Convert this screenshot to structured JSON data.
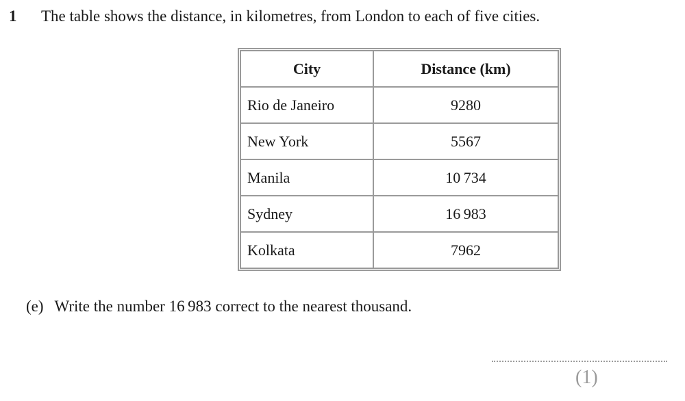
{
  "page": {
    "question_number": "1",
    "intro": "The table shows the distance, in kilometres, from London to each of five cities."
  },
  "table": {
    "headers": [
      "City",
      "Distance (km)"
    ],
    "rows": [
      {
        "city": "Rio de Janeiro",
        "distance": "9280"
      },
      {
        "city": "New York",
        "distance": "5567"
      },
      {
        "city": "Manila",
        "distance": "10 734"
      },
      {
        "city": "Sydney",
        "distance": "16 983"
      },
      {
        "city": "Kolkata",
        "distance": "7962"
      }
    ]
  },
  "question": {
    "part_label": "(e)",
    "text": "Write the number 16 983 correct to the nearest thousand.",
    "marks": "(1)"
  },
  "colors": {
    "table_border": "#9a9a9a",
    "text": "#1a1a1a",
    "marks_gray": "#9a9a9a"
  }
}
